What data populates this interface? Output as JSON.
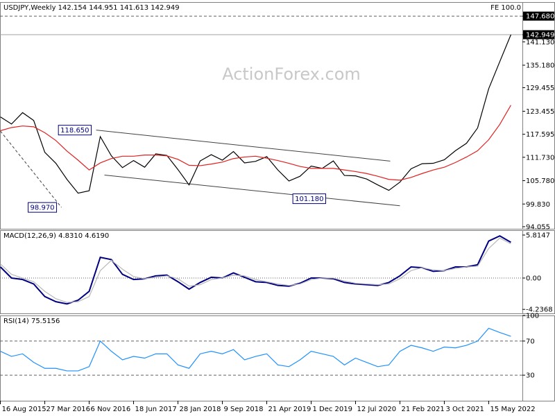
{
  "chart_data": [
    {
      "type": "line",
      "title": "USDJPY,Weekly  142.154 144.951 141.613 142.949",
      "corner_label": "FE 100.0",
      "watermark": "ActionForex.com",
      "x": [
        "2015-08-16",
        "2015-10-11",
        "2015-12-06",
        "2016-01-31",
        "2016-03-27",
        "2016-05-22",
        "2016-07-17",
        "2016-09-11",
        "2016-11-06",
        "2017-01-01",
        "2017-02-26",
        "2017-04-23",
        "2017-06-18",
        "2017-08-13",
        "2017-10-08",
        "2017-12-03",
        "2018-01-28",
        "2018-03-25",
        "2018-05-20",
        "2018-07-15",
        "2018-09-09",
        "2018-11-04",
        "2018-12-30",
        "2019-02-24",
        "2019-04-21",
        "2019-06-16",
        "2019-08-11",
        "2019-10-06",
        "2019-12-01",
        "2020-01-26",
        "2020-03-22",
        "2020-05-17",
        "2020-07-12",
        "2020-09-06",
        "2020-11-01",
        "2020-12-27",
        "2021-02-21",
        "2021-04-18",
        "2021-06-13",
        "2021-08-08",
        "2021-10-03",
        "2021-11-28",
        "2022-01-23",
        "2022-03-20",
        "2022-05-15",
        "2022-07-10",
        "2022-09-04"
      ],
      "xlim": [
        "2015-08-14",
        "2022-11-01"
      ],
      "xticks": [
        {
          "value": "2015-08-16",
          "label": "16 Aug 2015"
        },
        {
          "value": "2016-03-27",
          "label": "27 Mar 2016"
        },
        {
          "value": "2016-11-06",
          "label": "6 Nov 2016"
        },
        {
          "value": "2017-06-18",
          "label": "18 Jun 2017"
        },
        {
          "value": "2018-01-28",
          "label": "28 Jan 2018"
        },
        {
          "value": "2018-09-09",
          "label": "9 Sep 2018"
        },
        {
          "value": "2019-04-21",
          "label": "21 Apr 2019"
        },
        {
          "value": "2019-12-01",
          "label": "1 Dec 2019"
        },
        {
          "value": "2020-07-12",
          "label": "12 Jul 2020"
        },
        {
          "value": "2021-02-21",
          "label": "21 Feb 2021"
        },
        {
          "value": "2021-10-03",
          "label": "3 Oct 2021"
        },
        {
          "value": "2022-05-15",
          "label": "15 May 2022"
        }
      ],
      "series": [
        {
          "color": "#000000",
          "values": [
            122.0,
            120.2,
            123.1,
            121.1,
            113.0,
            110.2,
            106.1,
            102.6,
            103.2,
            117.0,
            112.1,
            109.1,
            110.9,
            109.2,
            112.6,
            112.2,
            108.6,
            104.7,
            110.8,
            112.4,
            111.0,
            113.2,
            110.3,
            110.7,
            111.9,
            108.5,
            105.7,
            106.9,
            109.5,
            108.9,
            110.8,
            107.1,
            107.0,
            106.2,
            104.7,
            103.3,
            105.4,
            108.8,
            110.1,
            110.2,
            111.1,
            113.4,
            115.3,
            119.2,
            129.2,
            136.1,
            142.949
          ]
        },
        {
          "color": "#e02020",
          "values": [
            118.5,
            119.3,
            119.7,
            119.5,
            118.0,
            116.0,
            113.3,
            111.0,
            108.5,
            110.3,
            111.4,
            112.0,
            112.0,
            112.3,
            112.3,
            112.1,
            111.2,
            109.7,
            109.6,
            110.0,
            110.5,
            111.4,
            111.8,
            112.0,
            111.5,
            110.9,
            110.2,
            109.4,
            108.9,
            108.9,
            108.9,
            108.5,
            108.1,
            107.6,
            106.9,
            106.1,
            105.9,
            106.6,
            107.6,
            108.5,
            109.2,
            110.4,
            111.8,
            113.4,
            116.2,
            120.1,
            125.0
          ]
        }
      ],
      "ylim": [
        93.52,
        151.25
      ],
      "yticks": [
        {
          "value": 147.68,
          "label": "147.680",
          "highlight": true
        },
        {
          "value": 142.949,
          "label": "142.949",
          "highlight": true
        },
        {
          "value": 141.13,
          "label": "141.130"
        },
        {
          "value": 135.18,
          "label": "135.180"
        },
        {
          "value": 129.455,
          "label": "129.455"
        },
        {
          "value": 123.455,
          "label": "123.455"
        },
        {
          "value": 117.595,
          "label": "117.595"
        },
        {
          "value": 111.73,
          "label": "111.730"
        },
        {
          "value": 105.78,
          "label": "105.780"
        },
        {
          "value": 99.83,
          "label": "99.830"
        },
        {
          "value": 94.055,
          "label": "94.055"
        }
      ],
      "levels": [
        {
          "value": 147.68,
          "line": "dashed"
        },
        {
          "value": 142.949,
          "line": "solid"
        }
      ],
      "annotations": [
        {
          "x": "2016-12-11",
          "value": 118.65,
          "label": "118.650"
        },
        {
          "x": "2016-06-19",
          "value": 98.97,
          "label": "98.970"
        },
        {
          "x": "2020-03-08",
          "value": 101.18,
          "label": "101.180"
        }
      ],
      "trendlines": [
        {
          "x": [
            "2016-12-11",
            "2021-01-03"
          ],
          "values": [
            118.65,
            110.75
          ],
          "line": "solid"
        },
        {
          "x": [
            "2017-01-22",
            "2021-02-21"
          ],
          "values": [
            107.2,
            99.38
          ],
          "line": "solid"
        },
        {
          "x": [
            "2015-08-16",
            "2016-06-19"
          ],
          "values": [
            118.4,
            98.97
          ],
          "line": "dashed"
        }
      ]
    },
    {
      "type": "line",
      "title": "MACD(12,26,9) 4.8310 4.6190",
      "series": [
        {
          "color": "#000080",
          "values": [
            1.5,
            0.0,
            -0.2,
            -0.8,
            -2.5,
            -3.2,
            -3.5,
            -3.0,
            -1.8,
            2.8,
            2.5,
            0.5,
            -0.2,
            -0.1,
            0.3,
            0.4,
            -0.5,
            -1.5,
            -0.6,
            0.1,
            0.0,
            0.7,
            0.1,
            -0.5,
            -0.6,
            -1.0,
            -1.1,
            -0.7,
            0.0,
            0.0,
            -0.1,
            -0.6,
            -0.8,
            -0.9,
            -1.0,
            -0.6,
            0.3,
            1.5,
            1.4,
            0.9,
            1.0,
            1.5,
            1.5,
            1.8,
            5.0,
            5.7,
            4.831
          ]
        },
        {
          "color": "#b8b8b8",
          "values": [
            1.9,
            0.5,
            0.0,
            -0.5,
            -1.8,
            -2.8,
            -3.3,
            -3.2,
            -2.5,
            1.0,
            2.4,
            1.2,
            0.2,
            -0.1,
            0.1,
            0.3,
            -0.1,
            -1.1,
            -0.9,
            -0.2,
            0.0,
            0.4,
            0.3,
            -0.2,
            -0.5,
            -0.8,
            -1.0,
            -0.8,
            -0.2,
            0.0,
            0.0,
            -0.4,
            -0.7,
            -0.8,
            -0.9,
            -0.8,
            -0.1,
            1.0,
            1.4,
            1.1,
            1.0,
            1.3,
            1.5,
            1.6,
            4.0,
            5.4,
            4.619
          ]
        }
      ],
      "ylim": [
        -4.78,
        6.47
      ],
      "yticks": [
        5.8147,
        {
          "value": 0,
          "label": "0.00"
        },
        -4.2368
      ],
      "levels": [
        {
          "value": 0,
          "line": "dotted"
        }
      ]
    },
    {
      "type": "line",
      "title": "RSI(14) 75.5156",
      "series": [
        {
          "color": "#1e90ff",
          "values": [
            58,
            52,
            55,
            45,
            38,
            38,
            35,
            35,
            40,
            70,
            58,
            48,
            52,
            50,
            55,
            55,
            42,
            38,
            55,
            58,
            55,
            60,
            48,
            52,
            55,
            42,
            40,
            48,
            58,
            55,
            52,
            42,
            50,
            45,
            40,
            42,
            58,
            65,
            62,
            58,
            63,
            62,
            65,
            70,
            85,
            80,
            75.5156
          ]
        }
      ],
      "ylim": [
        0,
        100
      ],
      "yticks": [
        100,
        70,
        30
      ],
      "levels": [
        {
          "value": 70,
          "line": "dashed"
        },
        {
          "value": 30,
          "line": "dashed"
        }
      ]
    }
  ]
}
